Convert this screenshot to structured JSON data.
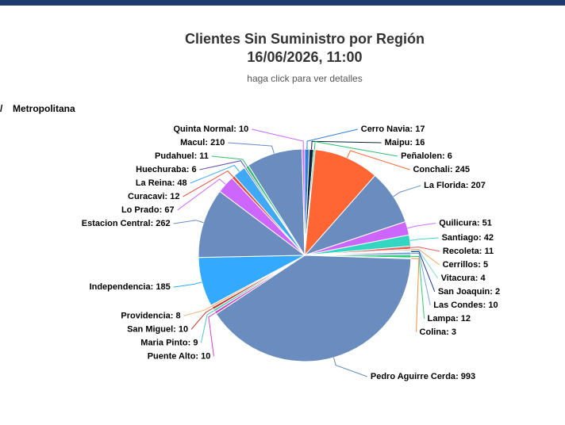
{
  "chart_data": {
    "type": "pie",
    "title": [
      "Clientes Sin Suministro por Región",
      "16/06/2026, 11:00"
    ],
    "subtitle": "haga click para ver detalles",
    "breadcrumb_separator": "/",
    "breadcrumb": "Metropolitana",
    "categories": [
      "Cerro Navia",
      "Maipu",
      "Peñalolen",
      "Conchali",
      "La Florida",
      "Quilicura",
      "Santiago",
      "Recoleta",
      "Cerrillos",
      "Vitacura",
      "San Joaquin",
      "Las Condes",
      "Lampa",
      "Colina",
      "Pedro Aguirre Cerda",
      "Puente Alto",
      "Maria Pinto",
      "San Miguel",
      "Providencia",
      "Independencia",
      "Estacion Central",
      "Lo Prado",
      "Curacavi",
      "La Reina",
      "Huechuraba",
      "Pudahuel",
      "Macul",
      "Quinta Normal"
    ],
    "values": [
      17,
      16,
      6,
      245,
      207,
      51,
      42,
      11,
      5,
      4,
      2,
      10,
      12,
      3,
      993,
      10,
      9,
      10,
      8,
      185,
      262,
      67,
      12,
      48,
      6,
      11,
      210,
      10
    ],
    "colors": [
      "#2f7ed8",
      "#0d233a",
      "#2fbf71",
      "#ff6633",
      "#6b8cbe",
      "#cc66ff",
      "#33d6c0",
      "#e85a5a",
      "#f2a65a",
      "#7ed6df",
      "#1f3a93",
      "#77a1e5",
      "#2ecc71",
      "#f28f43",
      "#6b8cbe",
      "#cc44cc",
      "#4cc9c0",
      "#c0392b",
      "#f0b27a",
      "#33aaff",
      "#6b8cbe",
      "#cc66ff",
      "#e74c3c",
      "#3fa9f5",
      "#5b4bb7",
      "#2fbf71",
      "#6b8cbe",
      "#cc66ff"
    ]
  }
}
